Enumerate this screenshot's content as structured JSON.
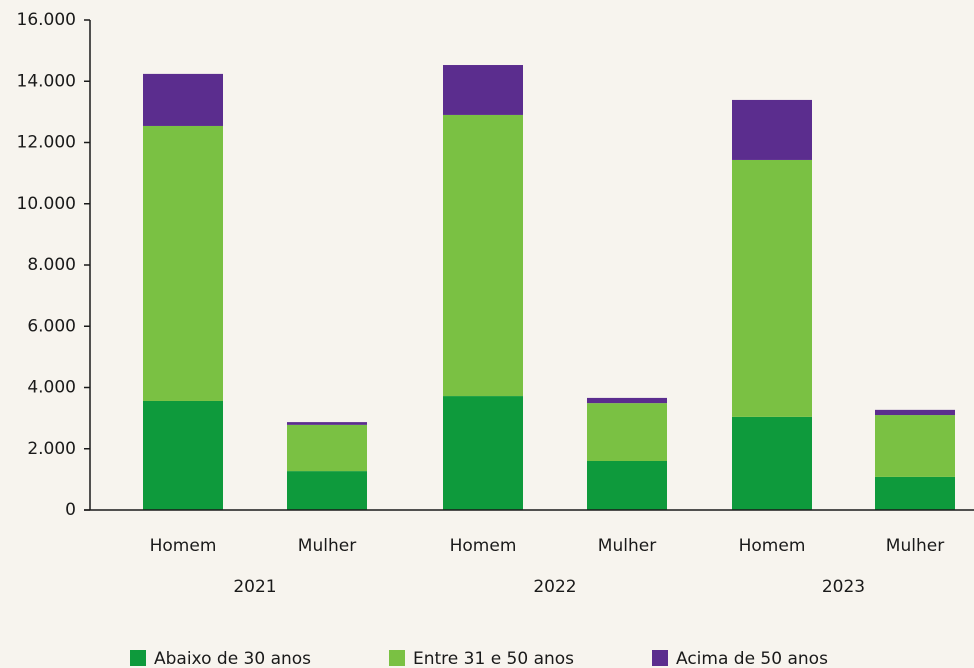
{
  "chart_data": {
    "type": "stacked_bar",
    "categories": [
      "Homem",
      "Mulher",
      "Homem",
      "Mulher",
      "Homem",
      "Mulher"
    ],
    "groups": [
      "2021",
      "2022",
      "2023"
    ],
    "series": [
      {
        "name": "Abaixo de 30 anos",
        "color": "#0e9a3c",
        "values": [
          3560,
          1270,
          3720,
          1600,
          3040,
          1080
        ]
      },
      {
        "name": "Entre 31 e 50 anos",
        "color": "#7ac143",
        "values": [
          8980,
          1510,
          9180,
          1890,
          8390,
          2020
        ]
      },
      {
        "name": "Acima de 50 anos",
        "color": "#5b2d8e",
        "values": [
          1700,
          90,
          1630,
          170,
          1960,
          170
        ]
      }
    ],
    "ylim": [
      0,
      16000
    ],
    "yticks": [
      0,
      {
        "value": 2000,
        "label": "2.000"
      },
      {
        "value": 4000,
        "label": "4.000"
      },
      {
        "value": 6000,
        "label": "6.000"
      },
      {
        "value": 8000,
        "label": "8.000"
      },
      {
        "value": 10000,
        "label": "10.000"
      },
      {
        "value": 12000,
        "label": "12.000"
      },
      {
        "value": 14000,
        "label": "14.000"
      },
      {
        "value": 16000,
        "label": "16.000"
      }
    ],
    "legend": "bottom"
  }
}
